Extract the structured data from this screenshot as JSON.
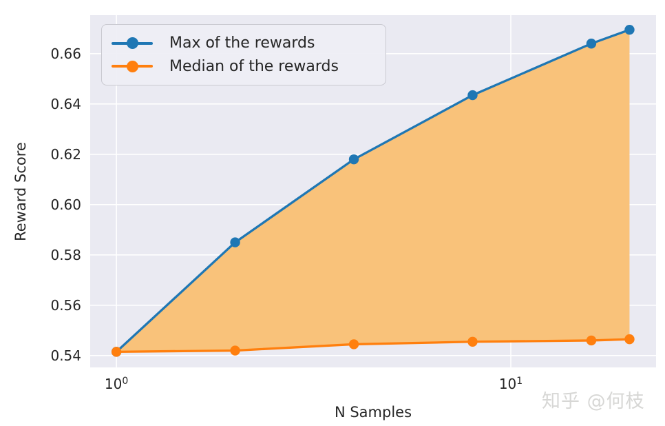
{
  "watermark": "知乎 @何枝",
  "chart_data": {
    "type": "line",
    "x": [
      1,
      2,
      4,
      8,
      16,
      20
    ],
    "xscale": "log",
    "series": [
      {
        "name": "Max of the rewards",
        "color": "#1f77b4",
        "values": [
          0.5415,
          0.585,
          0.618,
          0.6435,
          0.664,
          0.6695
        ]
      },
      {
        "name": "Median of the rewards",
        "color": "#ff7f0e",
        "values": [
          0.5415,
          0.542,
          0.5445,
          0.5455,
          0.546,
          0.5465
        ]
      }
    ],
    "fill_between": {
      "upper": 0,
      "lower": 1,
      "color": "#f9c27a"
    },
    "xlabel": "N Samples",
    "ylabel": "Reward Score",
    "xticks": [
      {
        "value": 1,
        "base": "10",
        "exp": "0"
      },
      {
        "value": 10,
        "base": "10",
        "exp": "1"
      }
    ],
    "yticks": [
      0.54,
      0.56,
      0.58,
      0.6,
      0.62,
      0.64,
      0.66
    ],
    "ytick_labels": [
      "0.54",
      "0.56",
      "0.58",
      "0.60",
      "0.62",
      "0.64",
      "0.66"
    ],
    "xlim": [
      0.858,
      23.35
    ],
    "ylim": [
      0.5353,
      0.6753
    ],
    "grid": true,
    "legend_position": "upper left",
    "colors": {
      "plot_bg": "#eaeaf2",
      "grid": "#ffffff",
      "text": "#262626"
    }
  }
}
